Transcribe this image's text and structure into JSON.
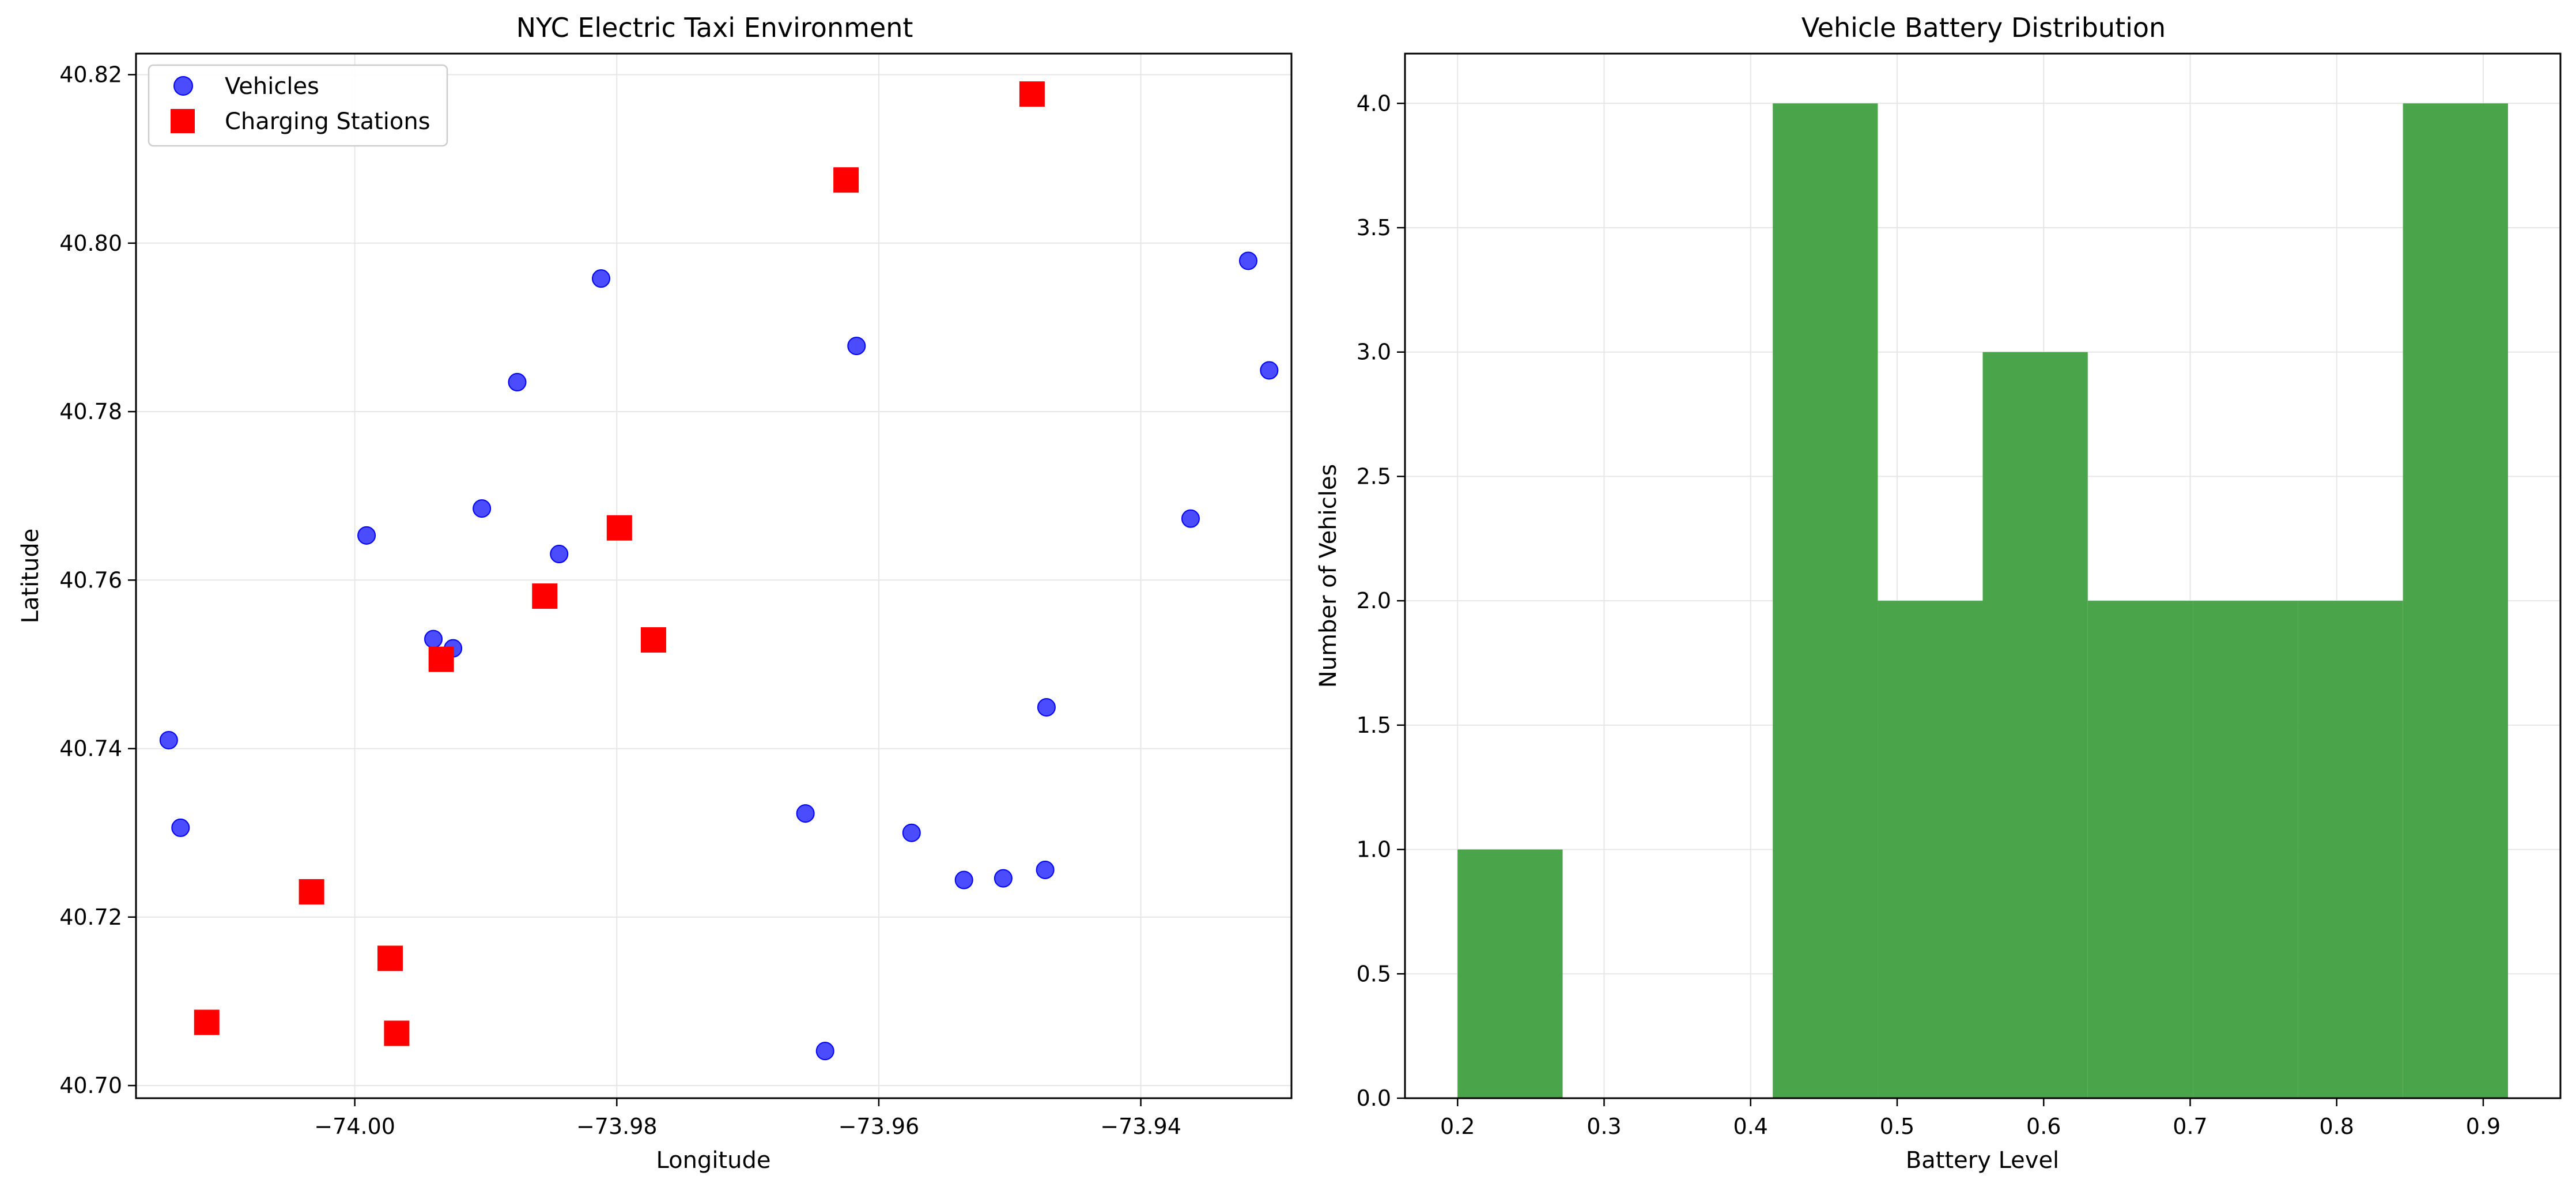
{
  "chart_data": [
    {
      "type": "scatter",
      "title": "NYC Electric Taxi Environment",
      "xlabel": "Longitude",
      "ylabel": "Latitude",
      "xlim": [
        -74.0167,
        -73.9285
      ],
      "ylim": [
        40.6985,
        40.8225
      ],
      "xticks": [
        -74.0,
        -73.98,
        -73.96,
        -73.94
      ],
      "xtick_labels": [
        "−74.00",
        "−73.98",
        "−73.96",
        "−73.94"
      ],
      "yticks": [
        40.7,
        40.72,
        40.74,
        40.76,
        40.78,
        40.8,
        40.82
      ],
      "ytick_labels": [
        "40.70",
        "40.72",
        "40.74",
        "40.76",
        "40.78",
        "40.80",
        "40.82"
      ],
      "grid": true,
      "legend_position": "top-left",
      "series": [
        {
          "name": "Vehicles",
          "marker": "circle",
          "color": "#0000ff",
          "points": [
            {
              "x": -74.0142,
              "y": 40.741
            },
            {
              "x": -74.0133,
              "y": 40.7306
            },
            {
              "x": -73.9991,
              "y": 40.7653
            },
            {
              "x": -73.994,
              "y": 40.753
            },
            {
              "x": -73.9925,
              "y": 40.7519
            },
            {
              "x": -73.9903,
              "y": 40.7685
            },
            {
              "x": -73.9876,
              "y": 40.7835
            },
            {
              "x": -73.9844,
              "y": 40.7631
            },
            {
              "x": -73.9812,
              "y": 40.7958
            },
            {
              "x": -73.9656,
              "y": 40.7323
            },
            {
              "x": -73.9641,
              "y": 40.7041
            },
            {
              "x": -73.9617,
              "y": 40.7878
            },
            {
              "x": -73.9575,
              "y": 40.73
            },
            {
              "x": -73.9535,
              "y": 40.7244
            },
            {
              "x": -73.9505,
              "y": 40.7246
            },
            {
              "x": -73.9473,
              "y": 40.7256
            },
            {
              "x": -73.9472,
              "y": 40.7449
            },
            {
              "x": -73.9362,
              "y": 40.7673
            },
            {
              "x": -73.9318,
              "y": 40.7979
            },
            {
              "x": -73.9302,
              "y": 40.7849
            }
          ]
        },
        {
          "name": "Charging Stations",
          "marker": "square",
          "color": "#ff0000",
          "points": [
            {
              "x": -74.0113,
              "y": 40.7075
            },
            {
              "x": -74.0033,
              "y": 40.723
            },
            {
              "x": -73.9973,
              "y": 40.7151
            },
            {
              "x": -73.9968,
              "y": 40.7062
            },
            {
              "x": -73.9934,
              "y": 40.7506
            },
            {
              "x": -73.9855,
              "y": 40.7581
            },
            {
              "x": -73.9798,
              "y": 40.7662
            },
            {
              "x": -73.9772,
              "y": 40.7529
            },
            {
              "x": -73.9625,
              "y": 40.8075
            },
            {
              "x": -73.9483,
              "y": 40.8177
            }
          ]
        }
      ]
    },
    {
      "type": "bar",
      "subtype": "histogram",
      "title": "Vehicle Battery Distribution",
      "xlabel": "Battery Level",
      "ylabel": "Number of Vehicles",
      "xlim": [
        0.1641,
        0.9527
      ],
      "ylim": [
        0,
        4.2
      ],
      "xticks": [
        0.2,
        0.3,
        0.4,
        0.5,
        0.6,
        0.7,
        0.8,
        0.9
      ],
      "xtick_labels": [
        "0.2",
        "0.3",
        "0.4",
        "0.5",
        "0.6",
        "0.7",
        "0.8",
        "0.9"
      ],
      "yticks": [
        0.0,
        0.5,
        1.0,
        1.5,
        2.0,
        2.5,
        3.0,
        3.5,
        4.0
      ],
      "ytick_labels": [
        "0.0",
        "0.5",
        "1.0",
        "1.5",
        "2.0",
        "2.5",
        "3.0",
        "3.5",
        "4.0"
      ],
      "grid": true,
      "color": "#4aa54a",
      "bin_edges": [
        0.2,
        0.2717,
        0.3434,
        0.4151,
        0.4868,
        0.5584,
        0.6301,
        0.7018,
        0.7735,
        0.8452,
        0.9169
      ],
      "counts": [
        1,
        0,
        0,
        4,
        2,
        3,
        2,
        2,
        2,
        4
      ]
    }
  ]
}
